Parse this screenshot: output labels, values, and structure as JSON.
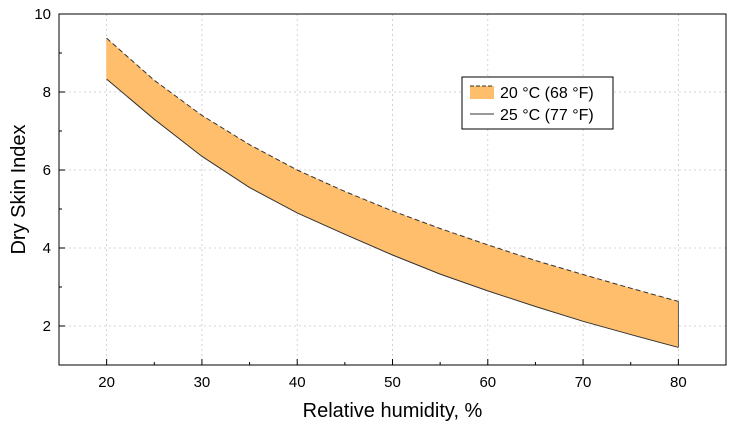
{
  "chart_data": {
    "type": "area",
    "title": "",
    "xlabel": "Relative humidity, %",
    "ylabel": "Dry Skin Index",
    "xlim": [
      15,
      85
    ],
    "ylim": [
      1,
      10
    ],
    "x_ticks": [
      20,
      30,
      40,
      50,
      60,
      70,
      80
    ],
    "y_ticks": [
      2,
      4,
      6,
      8,
      10
    ],
    "grid": true,
    "legend_position": "top-right",
    "fill_color": "#FFBE6B",
    "line_color": "#333333",
    "series": [
      {
        "name": "20 °C (68 °F)",
        "line_style": "dashed",
        "x": [
          20,
          25,
          30,
          35,
          40,
          45,
          50,
          55,
          60,
          65,
          70,
          75,
          80
        ],
        "values": [
          9.38,
          8.3,
          7.4,
          6.65,
          6.0,
          5.45,
          4.95,
          4.5,
          4.08,
          3.68,
          3.32,
          2.97,
          2.63
        ]
      },
      {
        "name": "25 °C (77 °F)",
        "line_style": "solid",
        "x": [
          20,
          25,
          30,
          35,
          40,
          45,
          50,
          55,
          60,
          65,
          70,
          75,
          80
        ],
        "values": [
          8.33,
          7.3,
          6.35,
          5.55,
          4.9,
          4.35,
          3.82,
          3.33,
          2.9,
          2.5,
          2.12,
          1.78,
          1.45
        ]
      }
    ]
  }
}
